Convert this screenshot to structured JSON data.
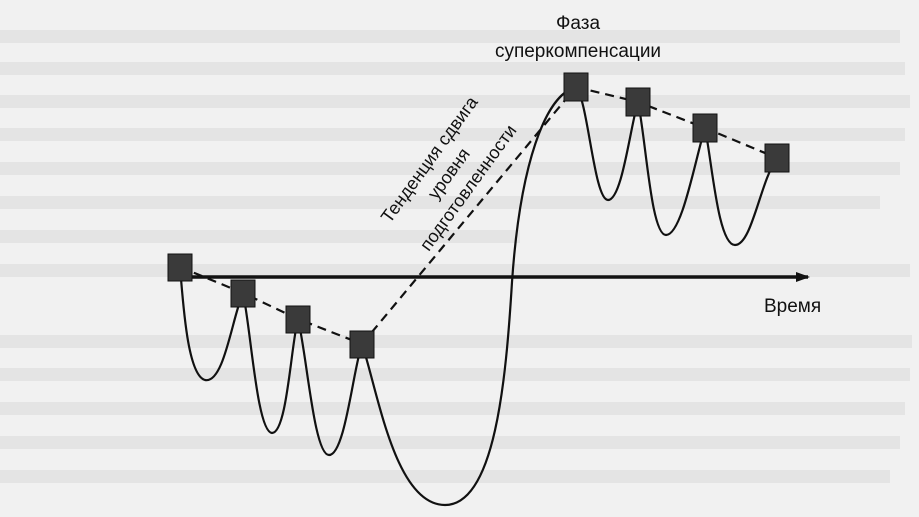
{
  "diagram": {
    "phase_label_line1": "Фаза",
    "phase_label_line2": "суперкомпенсации",
    "axis_label": "Время",
    "trend_label_line1": "Тенденция сдвига",
    "trend_label_line2": "уровня",
    "trend_label_line3": "подготовленности",
    "colors": {
      "background": "#f1f1f1",
      "ink": "#111111",
      "marker": "#3a3a3a"
    }
  }
}
